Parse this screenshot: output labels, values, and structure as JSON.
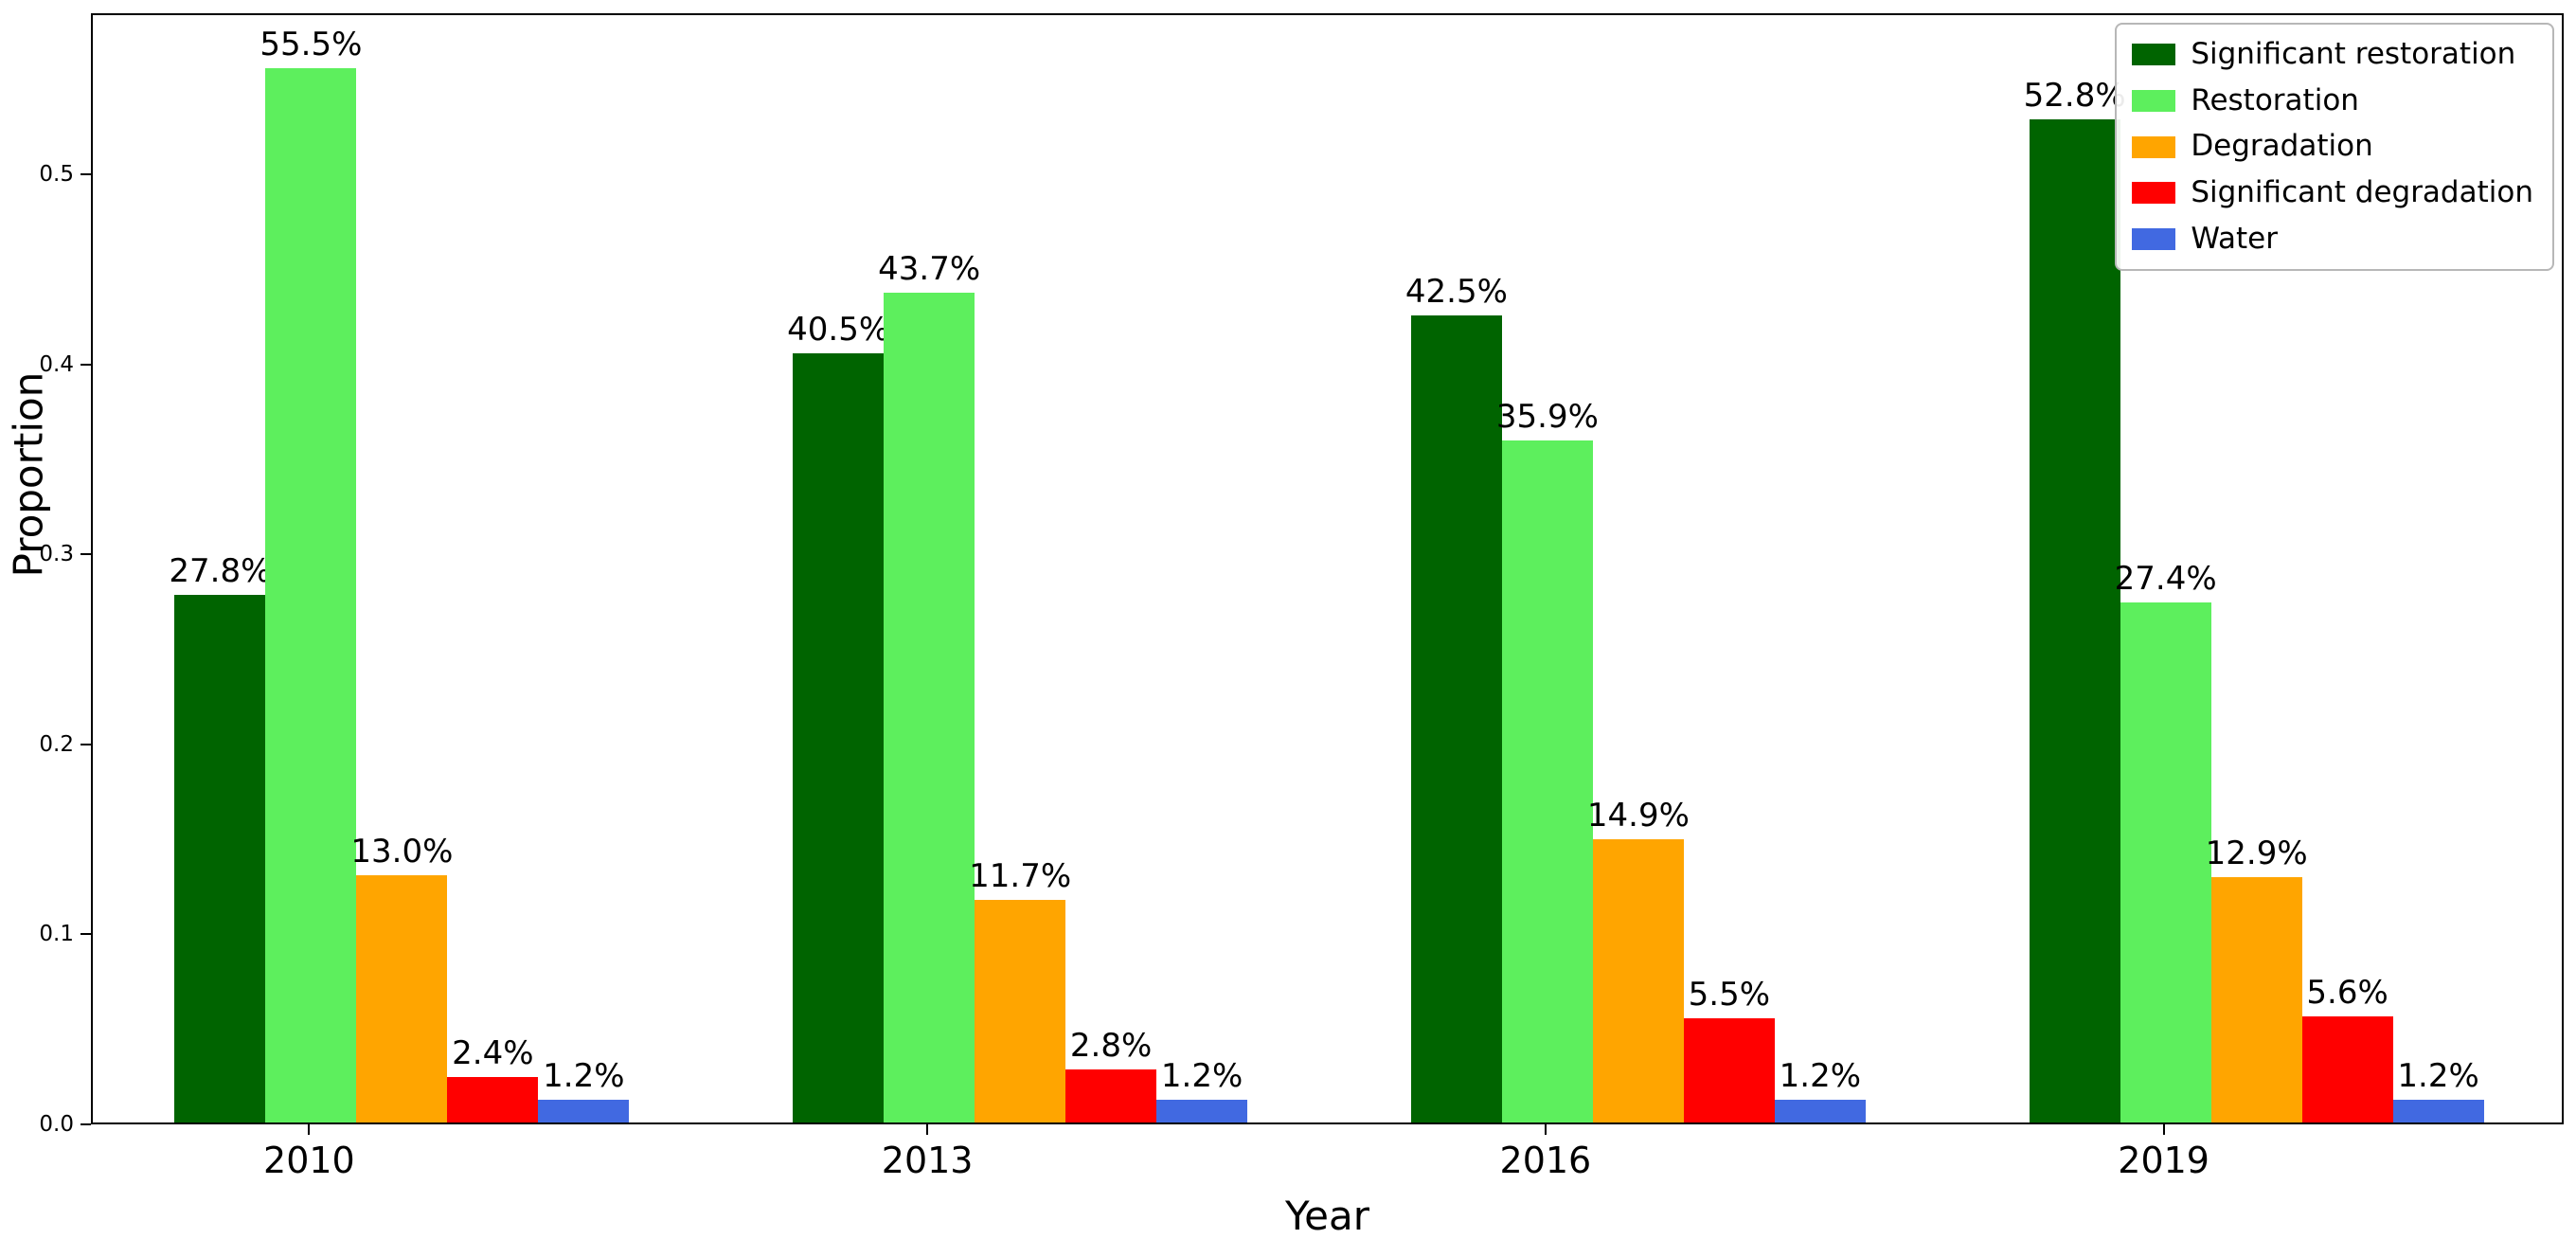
{
  "chart_data": {
    "type": "bar",
    "title": "",
    "xlabel": "Year",
    "ylabel": "Proportion",
    "categories": [
      "2010",
      "2013",
      "2016",
      "2019"
    ],
    "series": [
      {
        "name": "Significant restoration",
        "color": "#006400",
        "values": [
          0.278,
          0.405,
          0.425,
          0.528
        ],
        "labels": [
          "27.8%",
          "40.5%",
          "42.5%",
          "52.8%"
        ]
      },
      {
        "name": "Restoration",
        "color": "#5def5d",
        "values": [
          0.555,
          0.437,
          0.359,
          0.274
        ],
        "labels": [
          "55.5%",
          "43.7%",
          "35.9%",
          "27.4%"
        ]
      },
      {
        "name": "Degradation",
        "color": "#ffa500",
        "values": [
          0.13,
          0.117,
          0.149,
          0.129
        ],
        "labels": [
          "13.0%",
          "11.7%",
          "14.9%",
          "12.9%"
        ]
      },
      {
        "name": "Significant degradation",
        "color": "#ff0000",
        "values": [
          0.024,
          0.028,
          0.055,
          0.056
        ],
        "labels": [
          "2.4%",
          "2.8%",
          "5.5%",
          "5.6%"
        ]
      },
      {
        "name": "Water",
        "color": "#4169e1",
        "values": [
          0.012,
          0.012,
          0.012,
          0.012
        ],
        "labels": [
          "1.2%",
          "1.2%",
          "1.2%",
          "1.2%"
        ]
      }
    ],
    "ylim": [
      0,
      0.585
    ],
    "yticks": [
      "0.0",
      "0.1",
      "0.2",
      "0.3",
      "0.4",
      "0.5"
    ],
    "ytick_values": [
      0,
      0.1,
      0.2,
      0.3,
      0.4,
      0.5
    ],
    "legend_position": "upper right",
    "grid": false
  }
}
